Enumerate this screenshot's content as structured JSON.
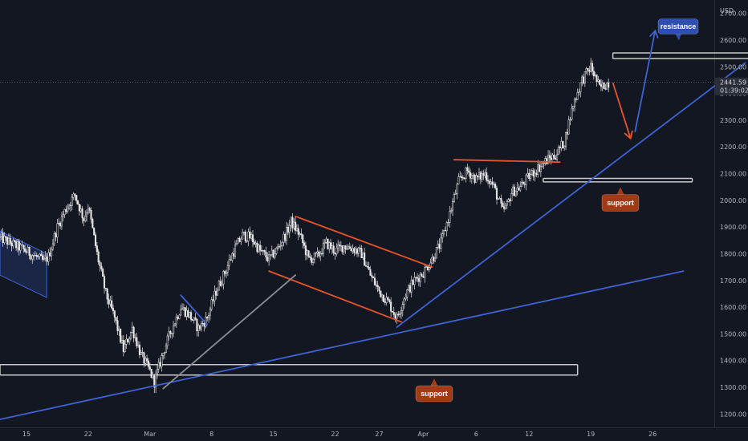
{
  "colors": {
    "background": "#131722",
    "candle": "#e6e6e6",
    "trendline_blue": "#3d63d4",
    "trendline_orange": "#e8542a",
    "trendline_gray": "#8a8d94",
    "zone_outline": "#c8c8c8",
    "resistance_badge": "#2f4fb0",
    "support_badge": "#a13a17"
  },
  "chart_data": {
    "type": "candlestick",
    "currency": "USD",
    "ylim": [
      1150,
      2750
    ],
    "y_ticks": [
      "2700.00",
      "2600.00",
      "2500.00",
      "2400.00",
      "2300.00",
      "2200.00",
      "2100.00",
      "2000.00",
      "1900.00",
      "1800.00",
      "1700.00",
      "1600.00",
      "1500.00",
      "1400.00",
      "1300.00",
      "1200.00"
    ],
    "x_ticks": [
      "15",
      "22",
      "Mar",
      "8",
      "15",
      "22",
      "27",
      "Apr",
      "6",
      "12",
      "19",
      "26"
    ],
    "x_tick_days": [
      0,
      7,
      14,
      21,
      28,
      35,
      40,
      45,
      51,
      57,
      64,
      71
    ],
    "xlim_days": [
      -3,
      78
    ],
    "last_price": "2441.59",
    "countdown": "01:39:02",
    "annotations": {
      "resistance_label": "resistance",
      "support_label_upper": "support",
      "support_label_lower": "support"
    },
    "zones": [
      {
        "name": "resistance-zone",
        "day_range": [
          66.5,
          82.5
        ],
        "price_range": [
          2531,
          2552
        ]
      },
      {
        "name": "support-zone-upper",
        "day_range": [
          58.6,
          75.5
        ],
        "price_range": [
          2069,
          2082
        ]
      },
      {
        "name": "support-zone-lower",
        "day_range": [
          -3,
          62.5
        ],
        "price_range": [
          1346,
          1385
        ]
      }
    ],
    "trendlines": [
      {
        "name": "long-term-support-line",
        "color": "blue",
        "from": [
          -3,
          1180
        ],
        "to": [
          74.5,
          1735
        ]
      },
      {
        "name": "rising-trendline",
        "color": "blue",
        "from": [
          42,
          1525
        ],
        "to": [
          81.5,
          2515
        ]
      },
      {
        "name": "upper-channel-line",
        "color": "orange",
        "from": [
          30.5,
          1940
        ],
        "to": [
          46,
          1750
        ]
      },
      {
        "name": "lower-channel-line",
        "color": "orange",
        "from": [
          27.5,
          1735
        ],
        "to": [
          42.5,
          1545
        ]
      },
      {
        "name": "horizontal-resistance-line",
        "color": "orange",
        "from": [
          48.5,
          2152
        ],
        "to": [
          60.5,
          2143
        ]
      },
      {
        "name": "short-blue-line",
        "color": "blue",
        "from": [
          17.5,
          1645
        ],
        "to": [
          20.5,
          1535
        ]
      },
      {
        "name": "gray-trendline",
        "color": "gray",
        "from": [
          15.5,
          1295
        ],
        "to": [
          30.5,
          1720
        ]
      }
    ],
    "arrows": [
      {
        "name": "projected-drop-arrow",
        "color": "orange",
        "from": [
          66.5,
          2440
        ],
        "to": [
          68.5,
          2232
        ]
      },
      {
        "name": "projected-rise-arrow",
        "color": "blue",
        "from": [
          69,
          2255
        ],
        "to": [
          71.3,
          2635
        ]
      }
    ],
    "channel_box": {
      "name": "left-channel-box",
      "points": [
        [
          -3,
          1885
        ],
        [
          2.3,
          1800
        ],
        [
          2.3,
          1636
        ],
        [
          -3,
          1720
        ]
      ]
    },
    "price_path": [
      [
        -3,
        1860
      ],
      [
        0,
        1810
      ],
      [
        2,
        1770
      ],
      [
        2.5,
        1790
      ],
      [
        3.5,
        1900
      ],
      [
        4.5,
        1970
      ],
      [
        5.5,
        2020
      ],
      [
        6.5,
        1930
      ],
      [
        7,
        1980
      ],
      [
        8,
        1800
      ],
      [
        9,
        1650
      ],
      [
        10,
        1560
      ],
      [
        11,
        1440
      ],
      [
        12,
        1520
      ],
      [
        13,
        1420
      ],
      [
        14,
        1360
      ],
      [
        14.5,
        1320
      ],
      [
        15.5,
        1430
      ],
      [
        16.5,
        1520
      ],
      [
        17.5,
        1600
      ],
      [
        18.5,
        1570
      ],
      [
        19.5,
        1520
      ],
      [
        20.5,
        1560
      ],
      [
        21.5,
        1660
      ],
      [
        22.5,
        1730
      ],
      [
        23.5,
        1810
      ],
      [
        24.5,
        1870
      ],
      [
        25.5,
        1860
      ],
      [
        26.5,
        1810
      ],
      [
        27.5,
        1780
      ],
      [
        28.5,
        1820
      ],
      [
        29.5,
        1880
      ],
      [
        30,
        1920
      ],
      [
        31,
        1870
      ],
      [
        32,
        1780
      ],
      [
        33,
        1790
      ],
      [
        34,
        1840
      ],
      [
        35,
        1810
      ],
      [
        36,
        1830
      ],
      [
        37,
        1820
      ],
      [
        38,
        1800
      ],
      [
        39,
        1720
      ],
      [
        40,
        1660
      ],
      [
        41,
        1620
      ],
      [
        42,
        1560
      ],
      [
        43,
        1650
      ],
      [
        44,
        1700
      ],
      [
        45,
        1730
      ],
      [
        46,
        1780
      ],
      [
        47,
        1840
      ],
      [
        48,
        1950
      ],
      [
        49,
        2070
      ],
      [
        50,
        2110
      ],
      [
        51,
        2080
      ],
      [
        52,
        2100
      ],
      [
        53,
        2050
      ],
      [
        54,
        1960
      ],
      [
        54.5,
        1980
      ],
      [
        55,
        2030
      ],
      [
        56,
        2050
      ],
      [
        57,
        2090
      ],
      [
        58,
        2120
      ],
      [
        59,
        2150
      ],
      [
        60,
        2170
      ],
      [
        61,
        2220
      ],
      [
        62,
        2360
      ],
      [
        63,
        2450
      ],
      [
        64,
        2500
      ],
      [
        65,
        2420
      ],
      [
        66,
        2441.59
      ]
    ]
  }
}
